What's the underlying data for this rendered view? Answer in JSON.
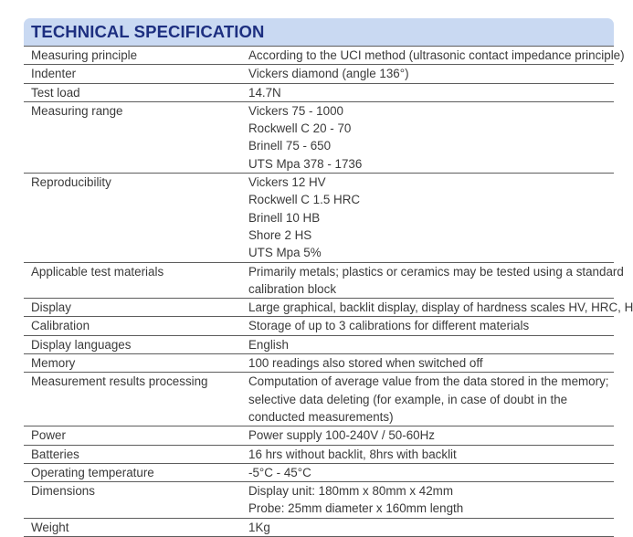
{
  "title": "TECHNICAL SPECIFICATION",
  "colors": {
    "header_bg": "#c9d9f2",
    "header_text": "#1d2f80",
    "rule": "#5d5d5d"
  },
  "rows": [
    {
      "label": "Measuring principle",
      "lines": [
        "According to the UCI method (ultrasonic contact impedance principle)"
      ]
    },
    {
      "label": "Indenter",
      "lines": [
        "Vickers diamond (angle 136°)"
      ]
    },
    {
      "label": "Test load",
      "lines": [
        "14.7N"
      ]
    },
    {
      "label": "Measuring range",
      "lines": [
        "Vickers 75 - 1000",
        "Rockwell C 20 - 70",
        "Brinell 75 - 650",
        "UTS Mpa 378 - 1736"
      ]
    },
    {
      "label": "Reproducibility",
      "lines": [
        "Vickers 12 HV",
        "Rockwell C 1.5 HRC",
        "Brinell 10 HB",
        "Shore 2 HS",
        "UTS Mpa 5%"
      ]
    },
    {
      "label": "Applicable test materials",
      "lines": [
        "Primarily metals; plastics or ceramics may be tested using a standard",
        "calibration block"
      ]
    },
    {
      "label": "Display",
      "lines": [
        "Large graphical, backlit display, display of hardness scales HV, HRC, HB"
      ]
    },
    {
      "label": "Calibration",
      "lines": [
        "Storage of up to 3 calibrations for different materials"
      ]
    },
    {
      "label": "Display languages",
      "lines": [
        "English"
      ]
    },
    {
      "label": "Memory",
      "lines": [
        "100 readings also stored when switched off"
      ]
    },
    {
      "label": "Measurement results processing",
      "lines": [
        "Computation of average value from the data stored in the memory;",
        "selective data deleting (for example, in case of doubt in the",
        "conducted measurements)"
      ]
    },
    {
      "label": "Power",
      "lines": [
        "Power supply 100-240V / 50-60Hz"
      ]
    },
    {
      "label": "Batteries",
      "lines": [
        "16 hrs without backlit, 8hrs with backlit"
      ]
    },
    {
      "label": "Operating temperature",
      "lines": [
        "-5°C - 45°C"
      ]
    },
    {
      "label": "Dimensions",
      "lines": [
        "Display unit: 180mm x 80mm x 42mm",
        "Probe: 25mm diameter x 160mm length"
      ]
    },
    {
      "label": "Weight",
      "lines": [
        "1Kg"
      ]
    }
  ]
}
